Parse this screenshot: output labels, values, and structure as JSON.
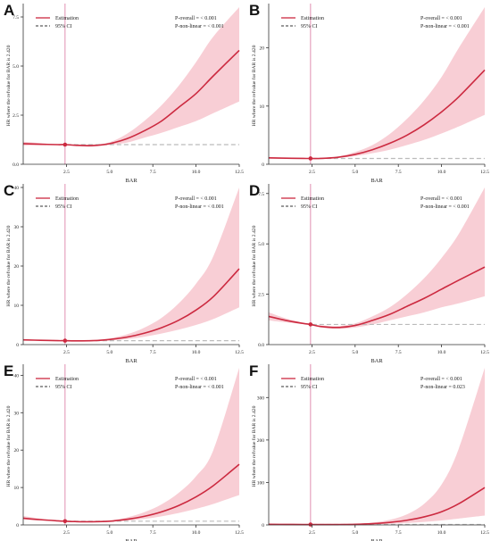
{
  "colors": {
    "estimate": "#cc2a40",
    "ci_fill": "#f7c6ce",
    "reference_line": "#e090b0",
    "ref_hr_line": "#bbbbbb",
    "axis": "#333333",
    "text": "#222222"
  },
  "chart_data": [
    {
      "panel": "A",
      "type": "line",
      "title": "",
      "xlabel": "BAR",
      "ylabel": "HR where the refvalue for BAR is 2.420",
      "xlim": [
        0,
        12.5
      ],
      "ylim": [
        0,
        8
      ],
      "xticks": [
        2.5,
        5.0,
        7.5,
        10.0,
        12.5
      ],
      "xtick_labels": [
        "2.5",
        "5.0",
        "7.5",
        "10.0",
        "12.5"
      ],
      "yticks": [
        0,
        2.5,
        5,
        7.5
      ],
      "ytick_labels": [
        "0.0",
        "2.5",
        "5.0",
        "7.5"
      ],
      "ref_x": 2.42,
      "ref_hr": 1,
      "legend": [
        "Estimation",
        "95% CI"
      ],
      "p_overall": "P-overall = < 0.001",
      "p_nonlinear": "P-non-linear = < 0.001",
      "x": [
        0,
        1,
        2,
        2.42,
        3,
        4,
        5,
        6,
        7,
        8,
        9,
        10,
        11,
        12.5
      ],
      "estimate": [
        1.05,
        1.02,
        1.0,
        1.0,
        0.97,
        0.95,
        1.05,
        1.3,
        1.7,
        2.2,
        2.9,
        3.6,
        4.5,
        5.8
      ],
      "ci_lower": [
        0.95,
        0.97,
        0.99,
        1.0,
        0.94,
        0.9,
        0.98,
        1.1,
        1.35,
        1.6,
        1.9,
        2.2,
        2.6,
        3.2
      ],
      "ci_upper": [
        1.15,
        1.08,
        1.01,
        1.0,
        1.0,
        1.0,
        1.12,
        1.55,
        2.2,
        3.0,
        4.0,
        5.2,
        6.5,
        8.0
      ]
    },
    {
      "panel": "B",
      "type": "line",
      "title": "",
      "xlabel": "BAR",
      "ylabel": "HR where the refvalue for BAR is 2.420",
      "xlim": [
        0,
        12.5
      ],
      "ylim": [
        0,
        27
      ],
      "xticks": [
        2.5,
        5.0,
        7.5,
        10.0,
        12.5
      ],
      "xtick_labels": [
        "2.5",
        "5.0",
        "7.5",
        "10.0",
        "12.5"
      ],
      "yticks": [
        0,
        10,
        20
      ],
      "ytick_labels": [
        "0",
        "10",
        "20"
      ],
      "ref_x": 2.42,
      "ref_hr": 1,
      "legend": [
        "Estimation",
        "95% CI"
      ],
      "p_overall": "P-overall = < 0.001",
      "p_nonlinear": "P-non-linear = < 0.001",
      "x": [
        0,
        1,
        2,
        2.42,
        3,
        4,
        5,
        6,
        7,
        8,
        9,
        10,
        11,
        12.5
      ],
      "estimate": [
        1.1,
        1.05,
        1.0,
        1.0,
        1.0,
        1.2,
        1.7,
        2.5,
        3.6,
        5.0,
        6.8,
        9.0,
        11.6,
        16.2
      ],
      "ci_lower": [
        0.95,
        0.98,
        0.99,
        1.0,
        0.97,
        1.1,
        1.4,
        1.9,
        2.5,
        3.3,
        4.2,
        5.3,
        6.5,
        8.5
      ],
      "ci_upper": [
        1.25,
        1.12,
        1.01,
        1.0,
        1.03,
        1.35,
        2.1,
        3.3,
        5.2,
        7.8,
        11.0,
        15.0,
        20.0,
        27.0
      ]
    },
    {
      "panel": "C",
      "type": "line",
      "title": "",
      "xlabel": "BAR",
      "ylabel": "HR where the refvalue for BAR is 2.420",
      "xlim": [
        0,
        12.5
      ],
      "ylim": [
        0,
        40
      ],
      "xticks": [
        2.5,
        5.0,
        7.5,
        10.0,
        12.5
      ],
      "xtick_labels": [
        "2.5",
        "5.0",
        "7.5",
        "10.0",
        "12.5"
      ],
      "yticks": [
        0,
        10,
        20,
        30,
        40
      ],
      "ytick_labels": [
        "0",
        "10",
        "20",
        "30",
        "40"
      ],
      "ref_x": 2.42,
      "ref_hr": 1,
      "legend": [
        "Estimation",
        "95% CI"
      ],
      "p_overall": "P-overall = < 0.001",
      "p_nonlinear": "P-non-linear = < 0.001",
      "x": [
        0,
        1,
        2,
        2.42,
        3,
        4,
        5,
        6,
        7,
        8,
        9,
        10,
        11,
        12.5
      ],
      "estimate": [
        1.2,
        1.1,
        1.0,
        1.0,
        0.95,
        1.0,
        1.3,
        1.9,
        2.9,
        4.3,
        6.2,
        8.8,
        12.2,
        19.3
      ],
      "ci_lower": [
        1.0,
        1.0,
        0.99,
        1.0,
        0.9,
        0.9,
        1.1,
        1.4,
        2.0,
        2.8,
        3.8,
        5.0,
        6.5,
        9.5
      ],
      "ci_upper": [
        1.4,
        1.2,
        1.01,
        1.0,
        1.0,
        1.15,
        1.6,
        2.6,
        4.3,
        6.8,
        10.5,
        15.5,
        22.5,
        40.0
      ]
    },
    {
      "panel": "D",
      "type": "line",
      "title": "",
      "xlabel": "BAR",
      "ylabel": "HR where the refvalue for BAR is 2.420",
      "xlim": [
        0,
        12.5
      ],
      "ylim": [
        0,
        7.8
      ],
      "xticks": [
        2.5,
        5.0,
        7.5,
        10.0,
        12.5
      ],
      "xtick_labels": [
        "2.5",
        "5.0",
        "7.5",
        "10.0",
        "12.5"
      ],
      "yticks": [
        0,
        2.5,
        5,
        7.5
      ],
      "ytick_labels": [
        "0.0",
        "2.5",
        "5.0",
        "7.5"
      ],
      "ref_x": 2.42,
      "ref_hr": 1,
      "legend": [
        "Estimation",
        "95% CI"
      ],
      "p_overall": "P-overall = < 0.001",
      "p_nonlinear": "P-non-linear = < 0.001",
      "x": [
        0,
        1,
        2,
        2.42,
        3,
        4,
        5,
        6,
        7,
        8,
        9,
        10,
        11,
        12.5
      ],
      "estimate": [
        1.4,
        1.2,
        1.05,
        1.0,
        0.9,
        0.85,
        0.95,
        1.2,
        1.5,
        1.9,
        2.3,
        2.75,
        3.2,
        3.85
      ],
      "ci_lower": [
        1.2,
        1.1,
        1.02,
        1.0,
        0.85,
        0.78,
        0.85,
        1.0,
        1.2,
        1.4,
        1.6,
        1.85,
        2.05,
        2.4
      ],
      "ci_upper": [
        1.6,
        1.3,
        1.08,
        1.0,
        0.95,
        0.92,
        1.05,
        1.4,
        1.85,
        2.5,
        3.3,
        4.3,
        5.5,
        7.8
      ]
    },
    {
      "panel": "E",
      "type": "line",
      "title": "",
      "xlabel": "BAR",
      "ylabel": "HR where the refvalue for BAR is 2.420",
      "xlim": [
        0,
        12.5
      ],
      "ylim": [
        0,
        42
      ],
      "xticks": [
        2.5,
        5.0,
        7.5,
        10.0,
        12.5
      ],
      "xtick_labels": [
        "2.5",
        "5.0",
        "7.5",
        "10.0",
        "12.5"
      ],
      "yticks": [
        0,
        10,
        20,
        30,
        40
      ],
      "ytick_labels": [
        "0",
        "10",
        "20",
        "30",
        "40"
      ],
      "ref_x": 2.42,
      "ref_hr": 1,
      "legend": [
        "Estimation",
        "95% CI"
      ],
      "p_overall": "P-overall = < 0.001",
      "p_nonlinear": "P-non-linear = < 0.001",
      "x": [
        0,
        1,
        2,
        2.42,
        3,
        4,
        5,
        6,
        7,
        8,
        9,
        10,
        11,
        12.5
      ],
      "estimate": [
        1.8,
        1.4,
        1.1,
        1.0,
        0.9,
        0.85,
        1.0,
        1.5,
        2.3,
        3.5,
        5.2,
        7.5,
        10.5,
        16.2
      ],
      "ci_lower": [
        1.4,
        1.2,
        1.05,
        1.0,
        0.85,
        0.75,
        0.85,
        1.1,
        1.6,
        2.3,
        3.2,
        4.3,
        5.6,
        8.0
      ],
      "ci_upper": [
        2.4,
        1.7,
        1.15,
        1.0,
        0.95,
        0.95,
        1.2,
        2.0,
        3.4,
        5.5,
        8.6,
        13.0,
        20.0,
        42.0
      ]
    },
    {
      "panel": "F",
      "type": "line",
      "title": "",
      "xlabel": "BAR",
      "ylabel": "HR where the refvalue for BAR is 2.420",
      "xlim": [
        0,
        12.5
      ],
      "ylim": [
        0,
        370
      ],
      "xticks": [
        2.5,
        5.0,
        7.5,
        10.0,
        12.5
      ],
      "xtick_labels": [
        "2.5",
        "5.0",
        "7.5",
        "10.0",
        "12.5"
      ],
      "yticks": [
        0,
        100,
        200,
        300
      ],
      "ytick_labels": [
        "0",
        "100",
        "200",
        "300"
      ],
      "ref_x": 2.42,
      "ref_hr": 1,
      "legend": [
        "Estimation",
        "95% CI"
      ],
      "p_overall": "P-overall = < 0.001",
      "p_nonlinear": "P-non-linear = 0.023",
      "x": [
        0,
        1,
        2,
        2.42,
        3,
        4,
        5,
        6,
        7,
        8,
        9,
        10,
        11,
        12.5
      ],
      "estimate": [
        1.5,
        1.2,
        1.0,
        1.0,
        0.9,
        1.0,
        1.5,
        3.0,
        6.0,
        11.0,
        19.0,
        31.0,
        50.0,
        88.0
      ],
      "ci_lower": [
        1.0,
        0.9,
        0.9,
        1.0,
        0.8,
        0.8,
        1.0,
        1.6,
        2.8,
        4.5,
        7.0,
        10.5,
        15.0,
        22.0
      ],
      "ci_upper": [
        2.0,
        1.5,
        1.1,
        1.0,
        1.0,
        1.3,
        2.4,
        5.5,
        12.0,
        25.0,
        50.0,
        95.0,
        180.0,
        370.0
      ]
    }
  ]
}
